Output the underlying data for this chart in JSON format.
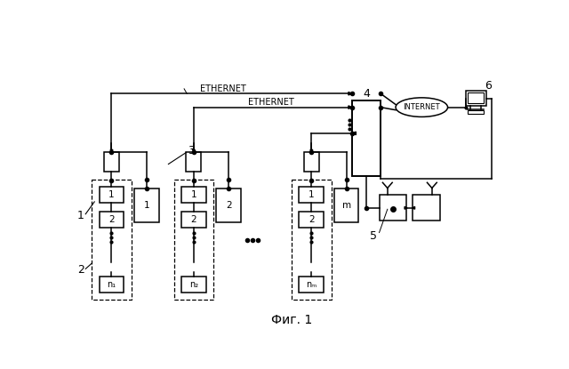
{
  "title": "Фиг. 1",
  "background_color": "#ffffff",
  "ethernet_label1": "ETHERNET",
  "ethernet_label2": "ETHERNET",
  "internet_label": "INTERNET",
  "label1": "1",
  "label2": "2",
  "label3": "3",
  "label4": "4",
  "label5": "5",
  "label6": "6",
  "label_n1": "n₁",
  "label_n2": "n₂",
  "label_nm": "nₘ"
}
